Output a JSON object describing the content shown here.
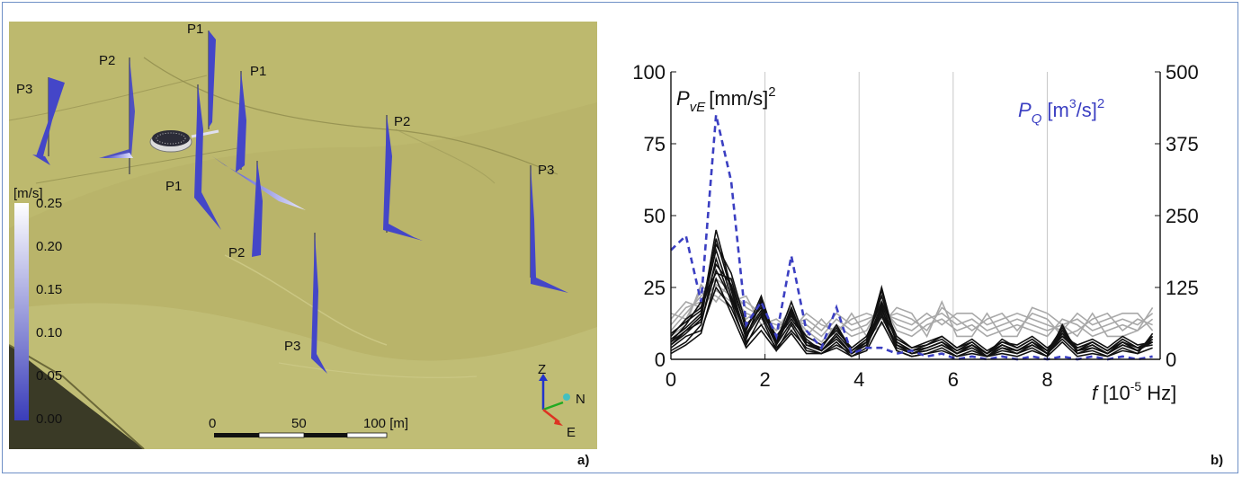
{
  "panel_a": {
    "letter": "a)",
    "colorbar": {
      "unit": "[m/s]",
      "ticks": [
        "0.25",
        "0.20",
        "0.15",
        "0.10",
        "0.05",
        "0.00"
      ],
      "top_color": "#ffffff",
      "bottom_color": "#3a3dba"
    },
    "scale_bar": {
      "labels": [
        "0",
        "50",
        "100 [m]"
      ]
    },
    "axes_triad": {
      "z": "Z",
      "n": "N",
      "e": "E"
    },
    "probe_labels": [
      "P1",
      "P2",
      "P1",
      "P3",
      "P2",
      "P3",
      "P1",
      "P2",
      "P3"
    ],
    "terrain_color": "#bdb96e",
    "vector_color": "#4446c8"
  },
  "panel_b": {
    "letter": "b)"
  },
  "chart_data": {
    "type": "line",
    "left_label_symbol": "P",
    "left_label_sub": "vE",
    "left_label_unit": "[mm/s]",
    "left_label_exp": "2",
    "right_label_symbol": "P",
    "right_label_sub": "Q",
    "right_label_unit_pre": "[m",
    "right_label_unit_exp1": "3",
    "right_label_unit_post": "/s]",
    "right_label_exp": "2",
    "xlabel_symbol": "f",
    "xlabel_unit_pre": "[10",
    "xlabel_unit_exp": "-5",
    "xlabel_unit_post": " Hz]",
    "x_ticks": [
      "0",
      "2",
      "4",
      "6",
      "8"
    ],
    "y_left_ticks": [
      "0",
      "25",
      "50",
      "75",
      "100"
    ],
    "y_right_ticks": [
      "0",
      "125",
      "250",
      "375",
      "500"
    ],
    "xlim": [
      0,
      10.4
    ],
    "ylim_left": [
      0,
      100
    ],
    "ylim_right": [
      0,
      500
    ],
    "grid_x": [
      2,
      4,
      6,
      8
    ],
    "x": [
      0,
      0.32,
      0.64,
      0.96,
      1.28,
      1.6,
      1.92,
      2.24,
      2.56,
      2.88,
      3.2,
      3.52,
      3.84,
      4.16,
      4.48,
      4.8,
      5.12,
      5.44,
      5.76,
      6.08,
      6.4,
      6.72,
      7.04,
      7.36,
      7.68,
      8.0,
      8.32,
      8.64,
      8.96,
      9.28,
      9.6,
      9.92,
      10.24
    ],
    "series_q": {
      "axis": "right",
      "color": "#3b3fc2",
      "dash": true,
      "values": [
        190,
        215,
        100,
        425,
        310,
        60,
        100,
        40,
        180,
        50,
        20,
        90,
        10,
        20,
        20,
        10,
        15,
        5,
        10,
        0,
        5,
        0,
        5,
        0,
        5,
        0,
        5,
        0,
        5,
        0,
        5,
        0,
        5
      ]
    },
    "series_black": {
      "axis": "left",
      "color": "#111111",
      "lines": [
        [
          5,
          10,
          15,
          45,
          25,
          8,
          20,
          5,
          18,
          5,
          3,
          8,
          2,
          6,
          25,
          5,
          2,
          4,
          6,
          2,
          5,
          1,
          5,
          3,
          6,
          2,
          10,
          3,
          5,
          2,
          6,
          3,
          8
        ],
        [
          8,
          14,
          18,
          40,
          30,
          12,
          18,
          8,
          15,
          8,
          5,
          10,
          4,
          8,
          20,
          8,
          4,
          6,
          8,
          4,
          7,
          3,
          6,
          5,
          8,
          4,
          8,
          5,
          7,
          4,
          8,
          5,
          6
        ],
        [
          3,
          6,
          12,
          35,
          20,
          5,
          15,
          3,
          12,
          3,
          2,
          6,
          1,
          4,
          18,
          3,
          1,
          2,
          4,
          1,
          3,
          1,
          3,
          2,
          4,
          1,
          12,
          2,
          3,
          1,
          4,
          2,
          9
        ],
        [
          6,
          12,
          20,
          30,
          28,
          10,
          22,
          6,
          20,
          6,
          4,
          12,
          3,
          7,
          22,
          6,
          3,
          5,
          7,
          3,
          6,
          2,
          7,
          4,
          7,
          3,
          9,
          4,
          6,
          3,
          7,
          4,
          5
        ],
        [
          4,
          8,
          10,
          25,
          18,
          6,
          12,
          4,
          10,
          4,
          2,
          5,
          2,
          5,
          15,
          4,
          2,
          3,
          5,
          2,
          4,
          1,
          4,
          2,
          5,
          2,
          7,
          2,
          4,
          2,
          5,
          3,
          7
        ],
        [
          7,
          11,
          16,
          38,
          22,
          9,
          17,
          7,
          14,
          7,
          3,
          9,
          3,
          6,
          19,
          6,
          3,
          4,
          6,
          3,
          5,
          2,
          5,
          3,
          6,
          3,
          11,
          3,
          6,
          3,
          6,
          4,
          6
        ],
        [
          2,
          5,
          9,
          28,
          16,
          4,
          10,
          3,
          9,
          2,
          2,
          4,
          1,
          3,
          13,
          3,
          1,
          2,
          3,
          1,
          2,
          1,
          2,
          1,
          3,
          1,
          6,
          1,
          2,
          1,
          3,
          2,
          4
        ],
        [
          9,
          13,
          17,
          33,
          26,
          11,
          19,
          5,
          16,
          5,
          4,
          11,
          3,
          7,
          17,
          7,
          4,
          5,
          8,
          4,
          6,
          2,
          6,
          4,
          7,
          3,
          10,
          4,
          6,
          3,
          7,
          4,
          7
        ],
        [
          5,
          9,
          14,
          42,
          24,
          7,
          21,
          6,
          17,
          6,
          3,
          7,
          2,
          5,
          24,
          5,
          2,
          3,
          5,
          2,
          4,
          1,
          4,
          3,
          5,
          2,
          8,
          3,
          4,
          2,
          5,
          3,
          8
        ],
        [
          6,
          10,
          13,
          31,
          21,
          8,
          16,
          5,
          13,
          5,
          3,
          8,
          2,
          6,
          16,
          5,
          3,
          4,
          6,
          2,
          5,
          2,
          5,
          3,
          6,
          2,
          9,
          3,
          5,
          2,
          6,
          3,
          6
        ]
      ]
    },
    "series_gray": {
      "axis": "left",
      "color": "#a8a8a8",
      "lines": [
        [
          10,
          16,
          22,
          28,
          24,
          18,
          15,
          10,
          14,
          12,
          8,
          14,
          10,
          12,
          18,
          12,
          10,
          14,
          16,
          12,
          14,
          10,
          12,
          14,
          12,
          10,
          12,
          14,
          10,
          12,
          14,
          12,
          16
        ],
        [
          14,
          20,
          18,
          24,
          20,
          22,
          12,
          14,
          10,
          16,
          12,
          10,
          14,
          16,
          14,
          16,
          14,
          10,
          18,
          14,
          10,
          14,
          16,
          10,
          16,
          14,
          8,
          10,
          14,
          16,
          10,
          14,
          12
        ],
        [
          8,
          12,
          26,
          20,
          28,
          14,
          18,
          8,
          16,
          10,
          6,
          12,
          8,
          10,
          20,
          10,
          8,
          12,
          14,
          10,
          12,
          8,
          10,
          12,
          10,
          8,
          14,
          12,
          8,
          10,
          12,
          10,
          14
        ],
        [
          12,
          18,
          20,
          26,
          22,
          16,
          14,
          12,
          12,
          14,
          10,
          16,
          12,
          14,
          16,
          14,
          12,
          16,
          12,
          16,
          16,
          12,
          14,
          16,
          14,
          12,
          10,
          16,
          12,
          14,
          16,
          16,
          10
        ],
        [
          16,
          14,
          24,
          22,
          18,
          20,
          16,
          10,
          18,
          8,
          14,
          8,
          16,
          8,
          12,
          18,
          16,
          8,
          20,
          8,
          8,
          16,
          8,
          8,
          18,
          16,
          12,
          8,
          16,
          8,
          8,
          10,
          18
        ]
      ]
    }
  }
}
